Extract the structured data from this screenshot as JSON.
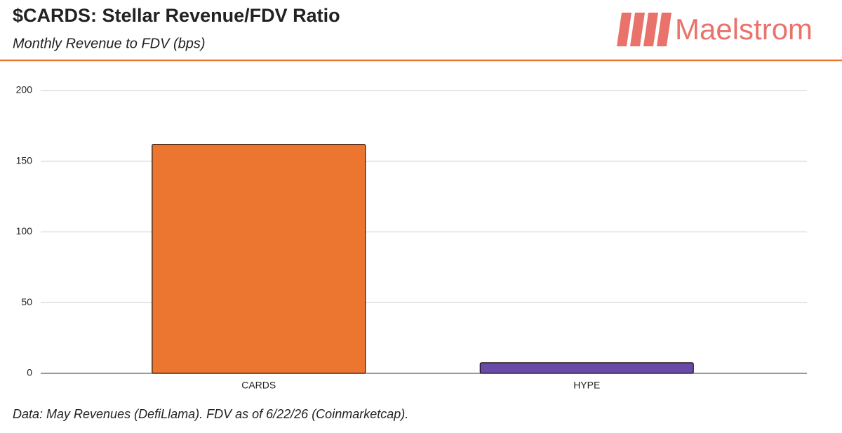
{
  "chart_data": {
    "type": "bar",
    "title": "$CARDS: Stellar Revenue/FDV Ratio",
    "subtitle": "Monthly Revenue to FDV (bps)",
    "logo": "Maelstrom",
    "note": "Data: May Revenues (DefiLlama). FDV as of 6/22/26 (Coinmarketcap).",
    "categories": [
      "CARDS",
      "HYPE"
    ],
    "values": [
      162,
      7.5
    ],
    "colors": [
      "#ec7530",
      "#6a4ba8"
    ],
    "ylim": [
      0,
      200
    ],
    "yticks": [
      0,
      50,
      100,
      150,
      200
    ],
    "grid": true
  }
}
